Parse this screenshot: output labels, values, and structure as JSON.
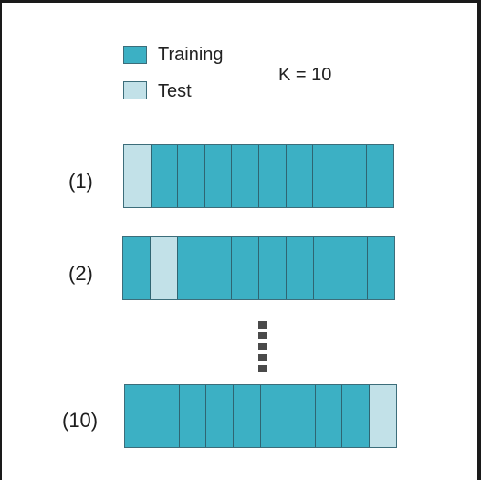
{
  "colors": {
    "training": "#3cb0c4",
    "test": "#c2e1e8",
    "dots": "#4a4a4a"
  },
  "legend": {
    "training_label": "Training",
    "test_label": "Test"
  },
  "k_label": "K = 10",
  "folds": [
    {
      "label": "(1)",
      "test_index": 0
    },
    {
      "label": "(2)",
      "test_index": 1
    },
    {
      "label": "(10)",
      "test_index": 9
    }
  ],
  "cells_per_bar": 10
}
